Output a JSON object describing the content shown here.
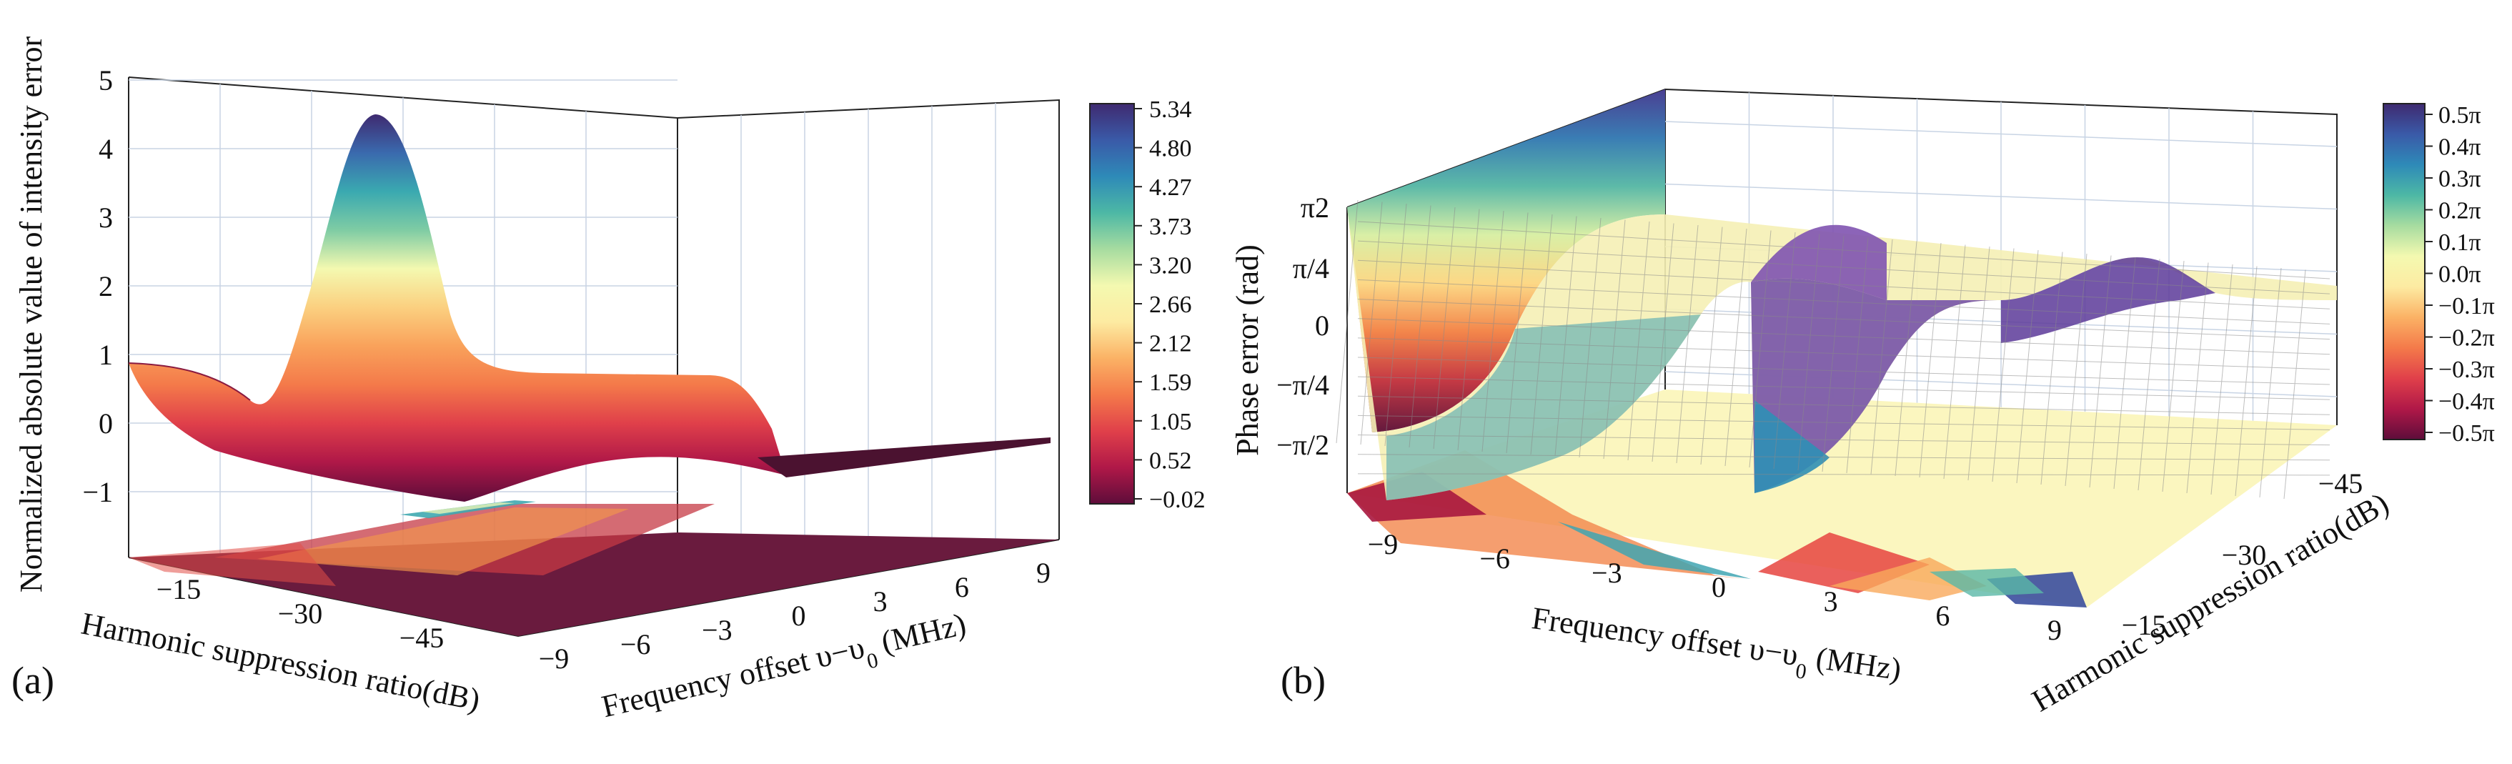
{
  "figure": {
    "panel_a_label": "(a)",
    "panel_b_label": "(b)"
  },
  "colormap": {
    "name": "spectral-reversed",
    "stops": [
      "#5e0d3a",
      "#b01848",
      "#e0404a",
      "#f47a4a",
      "#fbb265",
      "#fdeba2",
      "#f4f9b0",
      "#a7dca0",
      "#4db8a5",
      "#2e8ab8",
      "#3a5aa8",
      "#3f2a70"
    ]
  },
  "chart_data": [
    {
      "panel": "(a)",
      "type": "surface3d",
      "zlabel": "Normalized absolute value of intensity error",
      "xlabel": "Harmonic suppression ratio(dB)",
      "ylabel_prefix": "Frequency offset υ−υ",
      "ylabel_sub": "0",
      "ylabel_suffix": " (MHz)",
      "x_ticks": [
        "−15",
        "−30",
        "−45"
      ],
      "y_ticks": [
        "−9",
        "−6",
        "−3",
        "0",
        "3",
        "6",
        "9"
      ],
      "z_ticks": [
        "−1",
        "0",
        "1",
        "2",
        "3",
        "4",
        "5"
      ],
      "colorbar_ticks": [
        "5.34",
        "4.80",
        "4.27",
        "3.73",
        "3.20",
        "2.66",
        "2.12",
        "1.59",
        "1.05",
        "0.52",
        "−0.02"
      ],
      "x_range": [
        -15,
        -50
      ],
      "y_range": [
        -9,
        9
      ],
      "z_range": [
        -1.5,
        5.5
      ],
      "peak": {
        "harmonic_suppression_db": -15,
        "frequency_offset_mhz": 3,
        "value": 5.0
      },
      "description_profile": {
        "frequency_offset_mhz": [
          -9,
          -6,
          -3,
          0,
          3,
          6,
          9
        ],
        "value_at_minus15db": [
          1.3,
          1.0,
          0.5,
          1.4,
          5.0,
          1.8,
          1.2
        ]
      }
    },
    {
      "panel": "(b)",
      "type": "surface3d",
      "zlabel": "Phase error (rad)",
      "xlabel_prefix": "Frequency offset υ−υ",
      "xlabel_sub": "0",
      "xlabel_suffix": " (MHz)",
      "ylabel": "Harmonic suppression ratio(dB)",
      "x_ticks": [
        "−9",
        "−6",
        "−3",
        "0",
        "3",
        "6",
        "9"
      ],
      "y_ticks": [
        "−45",
        "−30",
        "−15"
      ],
      "z_ticks": [
        "π2",
        "π/4",
        "0",
        "−π/4",
        "−π/2"
      ],
      "colorbar_ticks": [
        "0.5π",
        "0.4π",
        "0.3π",
        "0.2π",
        "0.1π",
        "0.0π",
        "−0.1π",
        "−0.2π",
        "−0.3π",
        "−0.4π",
        "−0.5π"
      ],
      "x_range": [
        -9,
        9
      ],
      "y_range": [
        -15,
        -50
      ],
      "z_range": [
        -0.5,
        0.5
      ],
      "z_unit": "π rad"
    }
  ]
}
